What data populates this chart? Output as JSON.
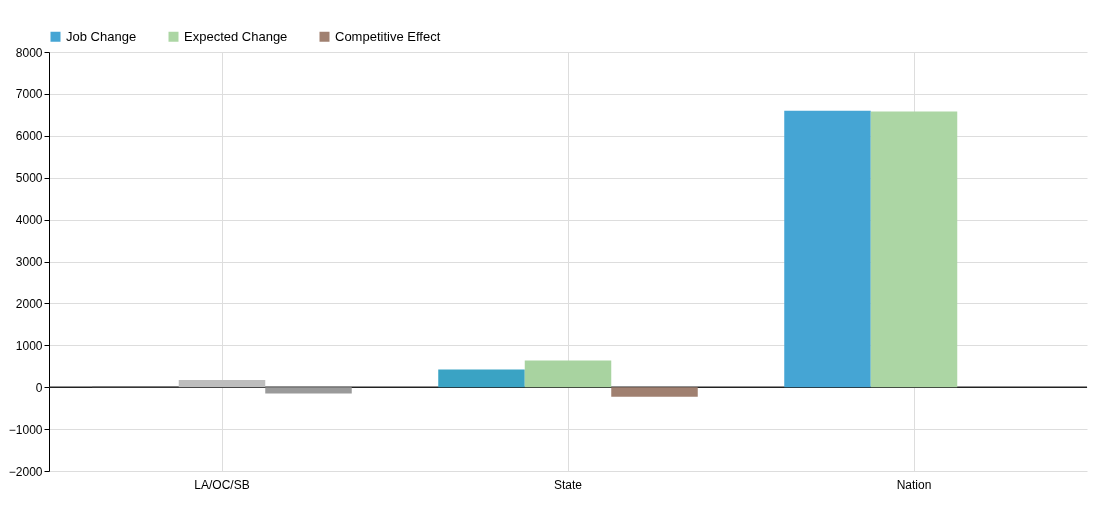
{
  "chart_data": {
    "type": "bar",
    "categories": [
      "LA/OC/SB",
      "State",
      "Nation"
    ],
    "series": [
      {
        "name": "Job Change",
        "color": "#45a5d4",
        "colors": [
          "#7a7a7a",
          "#3aa3c4",
          "#45a5d4"
        ],
        "values": [
          30,
          420,
          6600
        ]
      },
      {
        "name": "Expected Change",
        "color": "#acd6a4",
        "colors": [
          "#bdbdbd",
          "#a8d3a0",
          "#acd6a4"
        ],
        "values": [
          170,
          640,
          6580
        ]
      },
      {
        "name": "Competitive Effect",
        "color": "#a08070",
        "colors": [
          "#9a9a9a",
          "#a08070",
          "#a08070"
        ],
        "values": [
          -150,
          -230,
          null
        ]
      }
    ],
    "ylim": [
      -2000,
      8000
    ],
    "yticks": [
      -2000,
      -1000,
      0,
      1000,
      2000,
      3000,
      4000,
      5000,
      6000,
      7000,
      8000
    ],
    "ref_lines": [
      {
        "axis": "y",
        "value": 0,
        "color": "#222222"
      }
    ],
    "grid": true,
    "legend": "top left"
  }
}
